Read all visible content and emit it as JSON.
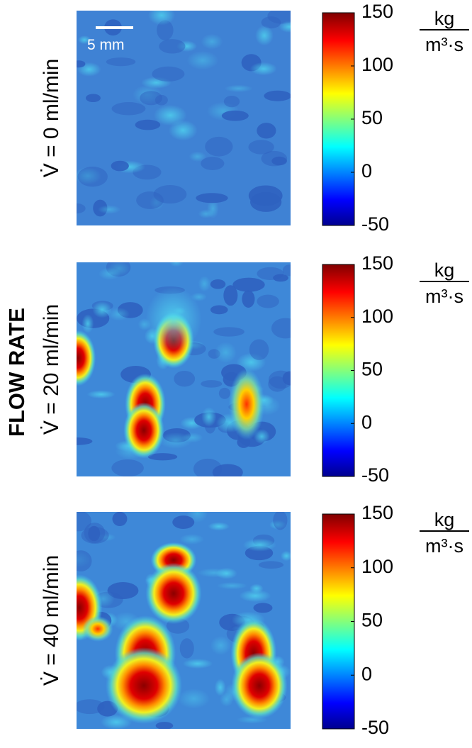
{
  "figure_label": "FLOW RATE",
  "scale_bar": "5 mm",
  "panels": [
    {
      "label": "V̇ = 0 ml/min",
      "colorbar": {
        "lim": [
          -50,
          150
        ],
        "ticks": [
          -50,
          0,
          50,
          100,
          150
        ],
        "unit_numerator": "kg",
        "unit_denominator": "m³·s"
      }
    },
    {
      "label": "V̇ = 20 ml/min",
      "colorbar": {
        "lim": [
          -50,
          150
        ],
        "ticks": [
          -50,
          0,
          50,
          100,
          150
        ],
        "unit_numerator": "kg",
        "unit_denominator": "m³·s"
      }
    },
    {
      "label": "V̇ = 40 ml/min",
      "colorbar": {
        "lim": [
          -50,
          150
        ],
        "ticks": [
          -50,
          0,
          50,
          100,
          150
        ],
        "unit_numerator": "kg",
        "unit_denominator": "m³·s"
      }
    }
  ]
}
